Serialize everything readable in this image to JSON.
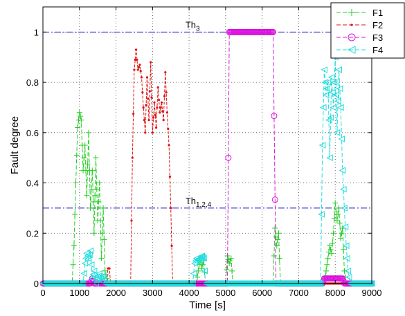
{
  "chart_data": {
    "type": "line",
    "xlabel": "Time [s]",
    "ylabel": "Fault degree",
    "xlim": [
      0,
      9000
    ],
    "ylim": [
      0,
      1.1
    ],
    "xticks": [
      "0",
      "1000",
      "2000",
      "3000",
      "4000",
      "5000",
      "6000",
      "7000",
      "8000",
      "9000"
    ],
    "yticks": [
      "0",
      "0.2",
      "0.4",
      "0.6",
      "0.8",
      "1"
    ],
    "grid": true,
    "legend_position": "top-right",
    "thresholds": [
      {
        "label": "Th_3",
        "label_main": "Th",
        "label_sub": "3",
        "value": 1.0,
        "label_x": 3900
      },
      {
        "label": "Th_1,2,4",
        "label_main": "Th",
        "label_sub": "1,2,4",
        "value": 0.3,
        "label_x": 3900
      }
    ],
    "series": [
      {
        "name": "F1",
        "color": "#22cc22",
        "marker": "plus",
        "x": [
          0,
          800,
          850,
          900,
          950,
          1000,
          1050,
          1100,
          1150,
          1200,
          1250,
          1300,
          1350,
          1400,
          1450,
          1500,
          1550,
          1600,
          1650,
          1700,
          1750,
          1800,
          4200,
          4250,
          4300,
          4350,
          4400,
          4450,
          5000,
          5050,
          5100,
          5150,
          5200,
          6300,
          6350,
          6400,
          6450,
          6500,
          7700,
          7750,
          7800,
          7850,
          7900,
          7950,
          8000,
          8050,
          8100,
          8150,
          8200,
          8250,
          8300,
          9000
        ],
        "y": [
          0,
          0,
          0.15,
          0.4,
          0.62,
          0.68,
          0.65,
          0.45,
          0.55,
          0.35,
          0.6,
          0.3,
          0.45,
          0.2,
          0.5,
          0.25,
          0.4,
          0.1,
          0.3,
          0.05,
          0.02,
          0,
          0,
          0.05,
          0.1,
          0.06,
          0.09,
          0,
          0,
          0.11,
          0.08,
          0.1,
          0,
          0,
          0.22,
          0.15,
          0.2,
          0,
          0,
          0.05,
          0.1,
          0.15,
          0.12,
          0.2,
          0.32,
          0.25,
          0.3,
          0.18,
          0.22,
          0.05,
          0,
          0
        ]
      },
      {
        "name": "F2",
        "color": "#dd1111",
        "marker": "dot",
        "x": [
          0,
          1750,
          1780,
          1820,
          1850,
          2400,
          2450,
          2500,
          2550,
          2600,
          2650,
          2700,
          2750,
          2800,
          2850,
          2900,
          2950,
          3000,
          3050,
          3100,
          3150,
          3200,
          3250,
          3300,
          3350,
          3400,
          3450,
          3500,
          3550,
          9000
        ],
        "y": [
          0,
          0,
          0.06,
          0.06,
          0,
          0,
          0.5,
          0.85,
          0.93,
          0.85,
          0.87,
          0.82,
          0.7,
          0.6,
          0.82,
          0.65,
          0.88,
          0.6,
          0.72,
          0.62,
          0.78,
          0.68,
          0.72,
          0.65,
          0.84,
          0.68,
          0.55,
          0.3,
          0,
          0
        ]
      },
      {
        "name": "F3",
        "color": "#dd11dd",
        "marker": "circle",
        "x": [
          0,
          1300,
          1350,
          1400,
          5050,
          5100,
          6300,
          6380,
          6420,
          7650,
          7700,
          8200,
          8250,
          9000
        ],
        "y": [
          0,
          0,
          0.02,
          0,
          0,
          1,
          1,
          0,
          0,
          0,
          0.02,
          0.02,
          0,
          0
        ]
      },
      {
        "name": "F4",
        "color": "#22dddd",
        "marker": "triangle-left",
        "x": [
          0,
          1100,
          1150,
          1200,
          1250,
          1300,
          1350,
          1400,
          1450,
          1500,
          1550,
          1600,
          1650,
          1700,
          4100,
          4150,
          4200,
          4250,
          4300,
          4350,
          4400,
          4450,
          7600,
          7650,
          7700,
          7750,
          7800,
          7850,
          7900,
          7950,
          8000,
          8050,
          8100,
          8150,
          8200,
          8250,
          8300,
          8350,
          8400,
          9000
        ],
        "y": [
          0,
          0,
          0.08,
          0.12,
          0.1,
          0.13,
          0.02,
          0.05,
          0.0,
          0.02,
          0.04,
          0.01,
          0.03,
          0,
          0,
          0.08,
          0.1,
          0.09,
          0.1,
          0.11,
          0.1,
          0,
          0,
          0.55,
          0.85,
          0.75,
          0.8,
          0.5,
          0.82,
          0.7,
          0.9,
          0.6,
          0.85,
          0.7,
          0.45,
          0.3,
          0.15,
          0.05,
          0,
          0
        ]
      }
    ]
  }
}
